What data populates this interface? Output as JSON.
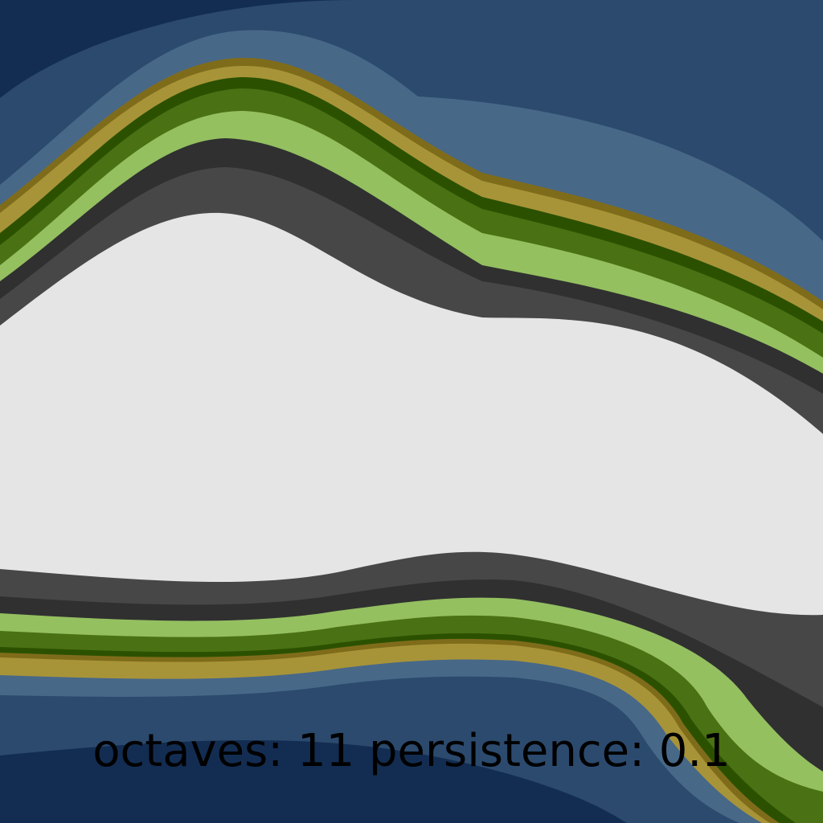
{
  "caption": "octaves: 11 persistence: 0.1",
  "palette": {
    "deep_water": "#132d52",
    "water": "#2b4a6e",
    "shallow_water": "#486888",
    "sand_dark": "#7f6c1a",
    "sand": "#a89438",
    "forest_dark": "#2b5100",
    "forest": "#4a7113",
    "grass": "#94c060",
    "rock_dark": "#303030",
    "rock": "#474747",
    "snow": "#e5e5e5"
  }
}
